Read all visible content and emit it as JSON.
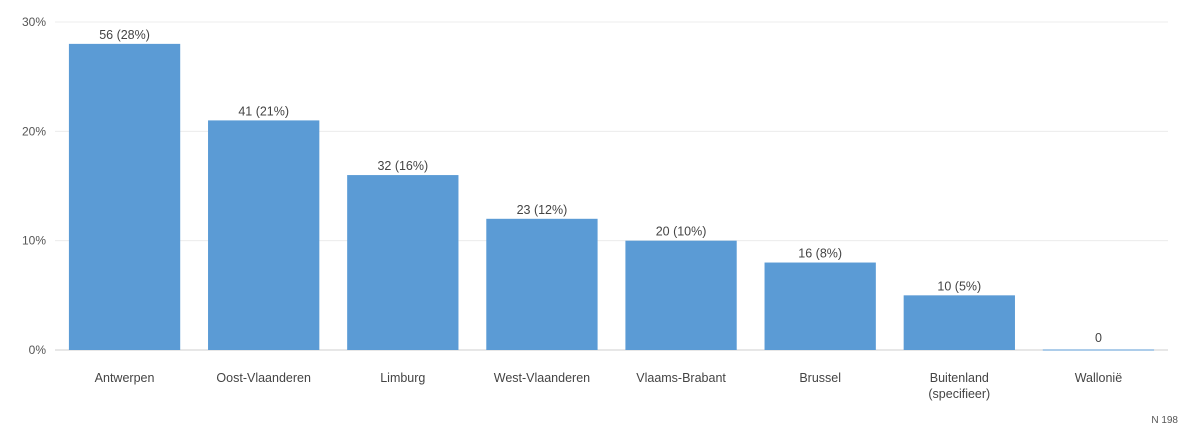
{
  "chart_data": {
    "type": "bar",
    "categories": [
      "Antwerpen",
      "Oost-Vlaanderen",
      "Limburg",
      "West-Vlaanderen",
      "Vlaams-Brabant",
      "Brussel",
      "Buitenland (specifieer)",
      "Wallonië"
    ],
    "category_lines": [
      [
        "Antwerpen"
      ],
      [
        "Oost-Vlaanderen"
      ],
      [
        "Limburg"
      ],
      [
        "West-Vlaanderen"
      ],
      [
        "Vlaams-Brabant"
      ],
      [
        "Brussel"
      ],
      [
        "Buitenland",
        "(specifieer)"
      ],
      [
        "Wallonië"
      ]
    ],
    "values": [
      28,
      21,
      16,
      12,
      10,
      8,
      5,
      0
    ],
    "data_labels": [
      "56 (28%)",
      "41 (21%)",
      "32 (16%)",
      "23 (12%)",
      "20 (10%)",
      "16 (8%)",
      "10 (5%)",
      "0"
    ],
    "ylim": [
      0,
      30
    ],
    "yticks": [
      0,
      10,
      20,
      30
    ],
    "ytick_labels": [
      "0%",
      "10%",
      "20%",
      "30%"
    ],
    "bar_color": "#5b9bd5",
    "grid": true,
    "note": "N 198"
  }
}
